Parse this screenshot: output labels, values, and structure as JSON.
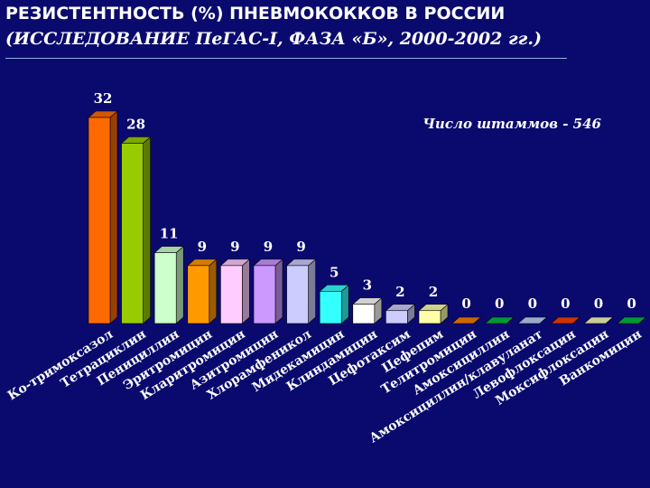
{
  "title": {
    "line1": "РЕЗИСТЕНТНОСТЬ (%) ПНЕВМОКОККОВ В РОССИИ",
    "line2": "(ИССЛЕДОВАНИЕ ПеГАС-I, ФАЗА «Б», 2000-2002 гг.)"
  },
  "chart_data": {
    "type": "bar",
    "annotation": "Число штаммов - 546",
    "ylim": [
      0,
      32
    ],
    "categories": [
      "Ко-тримоксазол",
      "Тетрациклин",
      "Пенициллин",
      "Эритромицин",
      "Кларитромицин",
      "Азитромицин",
      "Хлорамфеникол",
      "Мидекамицин",
      "Клиндамицин",
      "Цефотаксим",
      "Цефепим",
      "Телитромицин",
      "Амоксициллин",
      "Амоксициллин/клавуланат",
      "Левофлоксацин",
      "Моксифлоксацин",
      "Ванкомицин"
    ],
    "values": [
      32,
      28,
      11,
      9,
      9,
      9,
      9,
      5,
      3,
      2,
      2,
      0,
      0,
      0,
      0,
      0,
      0
    ],
    "colors": [
      "#ff6a00",
      "#99cc00",
      "#ccffcc",
      "#ff9900",
      "#ffccff",
      "#cc99ff",
      "#ccccff",
      "#33ffff",
      "#ffffff",
      "#ccccff",
      "#ffffaa",
      "#cc6600",
      "#009933",
      "#99aacc",
      "#cc3300",
      "#cccc99",
      "#009933"
    ]
  }
}
